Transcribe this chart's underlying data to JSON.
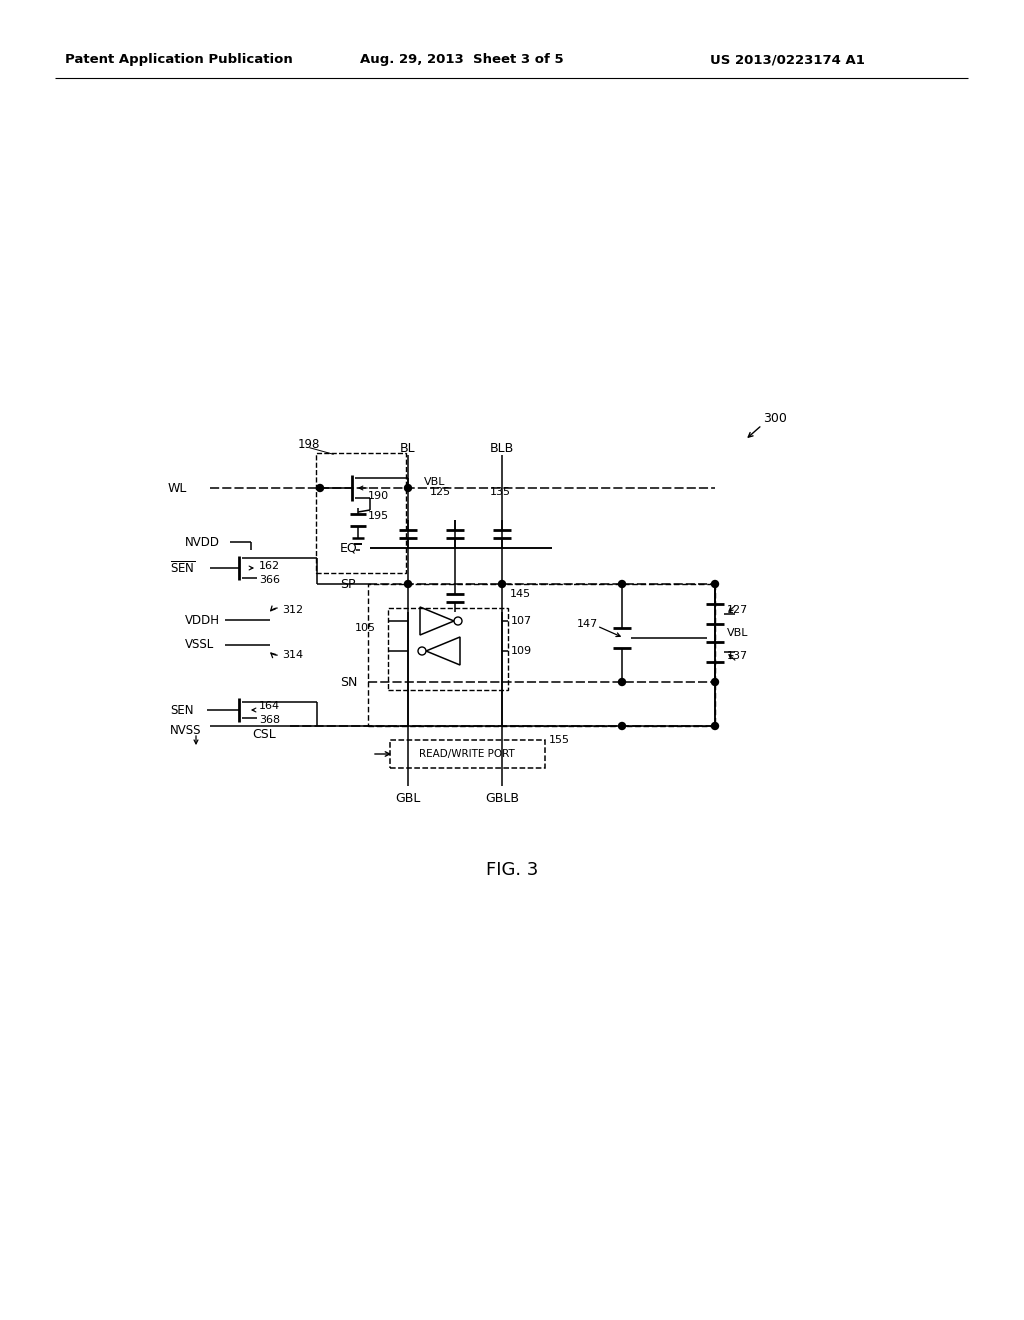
{
  "header_left": "Patent Application Publication",
  "header_center": "Aug. 29, 2013  Sheet 3 of 5",
  "header_right": "US 2013/0223174 A1",
  "fig_title": "FIG. 3",
  "fig_label": "300",
  "bg_color": "#ffffff"
}
